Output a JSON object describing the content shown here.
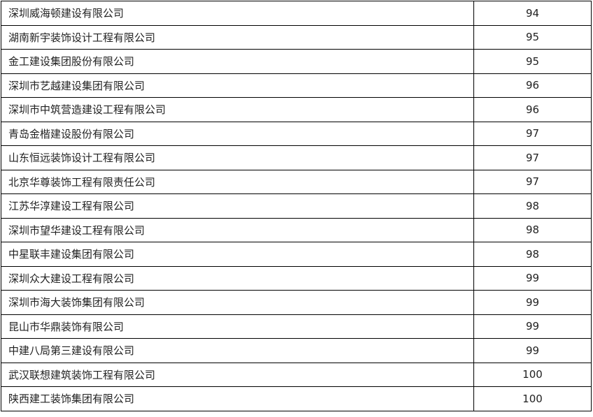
{
  "rows": [
    {
      "name": "深圳威海顿建设有限公司",
      "score": "94"
    },
    {
      "name": "湖南新宇装饰设计工程有限公司",
      "score": "95"
    },
    {
      "name": "金工建设集团股份有限公司",
      "score": "95"
    },
    {
      "name": "深圳市艺越建设集团有限公司",
      "score": "96"
    },
    {
      "name": "深圳市中筑营造建设工程有限公司",
      "score": "96"
    },
    {
      "name": "青岛金楷建设股份有限公司",
      "score": "97"
    },
    {
      "name": "山东恒远装饰设计工程有限公司",
      "score": "97"
    },
    {
      "name": "北京华尊装饰工程有限责任公司",
      "score": "97"
    },
    {
      "name": "江苏华淳建设工程有限公司",
      "score": "98"
    },
    {
      "name": "深圳市望华建设工程有限公司",
      "score": "98"
    },
    {
      "name": "中星联丰建设集团有限公司",
      "score": "98"
    },
    {
      "name": "深圳众大建设工程有限公司",
      "score": "99"
    },
    {
      "name": "深圳市海大装饰集团有限公司",
      "score": "99"
    },
    {
      "name": "昆山市华鼎装饰有限公司",
      "score": "99"
    },
    {
      "name": "中建八局第三建设有限公司",
      "score": "99"
    },
    {
      "name": "武汉联想建筑装饰工程有限公司",
      "score": "100"
    },
    {
      "name": "陕西建工装饰集团有限公司",
      "score": "100"
    }
  ]
}
